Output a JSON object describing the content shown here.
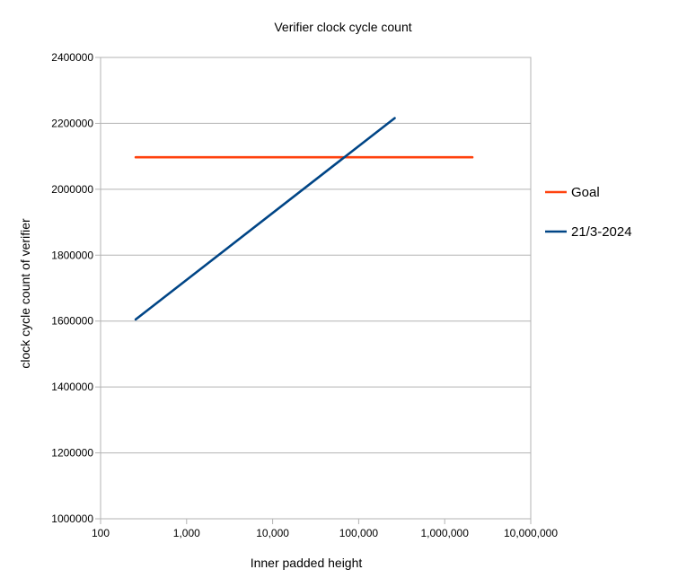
{
  "chart_data": {
    "type": "line",
    "title": "Verifier clock cycle count",
    "xlabel": "Inner padded height",
    "ylabel": "clock cycle count of verifier",
    "x_scale": "log",
    "xlim": [
      100,
      10000000
    ],
    "ylim": [
      1000000,
      2400000
    ],
    "x_ticks": [
      {
        "value": 100,
        "label": "100"
      },
      {
        "value": 1000,
        "label": "1,000"
      },
      {
        "value": 10000,
        "label": "10,000"
      },
      {
        "value": 100000,
        "label": "100,000"
      },
      {
        "value": 1000000,
        "label": "1,000,000"
      },
      {
        "value": 10000000,
        "label": "10,000,000"
      }
    ],
    "y_ticks": [
      {
        "value": 1000000,
        "label": "1000000"
      },
      {
        "value": 1200000,
        "label": "1200000"
      },
      {
        "value": 1400000,
        "label": "1400000"
      },
      {
        "value": 1600000,
        "label": "1600000"
      },
      {
        "value": 1800000,
        "label": "1800000"
      },
      {
        "value": 2000000,
        "label": "2000000"
      },
      {
        "value": 2200000,
        "label": "2200000"
      },
      {
        "value": 2400000,
        "label": "2400000"
      }
    ],
    "grid": {
      "horizontal": true,
      "vertical": false
    },
    "legend_position": "right",
    "series": [
      {
        "name": "Goal",
        "color": "#ff420e",
        "x": [
          256,
          2097152
        ],
        "y": [
          2097152,
          2097152
        ]
      },
      {
        "name": "21/3-2024",
        "color": "#004586",
        "x": [
          256,
          262144
        ],
        "y": [
          1605000,
          2216000
        ]
      }
    ]
  }
}
